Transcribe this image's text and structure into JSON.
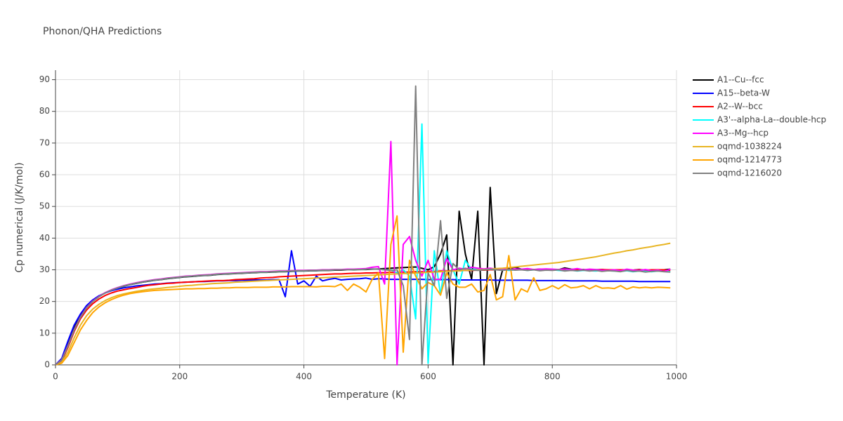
{
  "chart_data": {
    "type": "line",
    "title": "Phonon/QHA Predictions",
    "x_label": "Temperature (K)",
    "y_label": "Cp numerical (J/K/mol)",
    "xlim": [
      0,
      1000
    ],
    "ylim": [
      0,
      93
    ],
    "xticks": [
      0,
      200,
      400,
      600,
      800,
      1000
    ],
    "yticks": [
      0,
      10,
      20,
      30,
      40,
      50,
      60,
      70,
      80,
      90
    ],
    "grid": true,
    "legend": "right",
    "x": [
      0,
      10,
      20,
      30,
      40,
      50,
      60,
      70,
      80,
      90,
      100,
      110,
      120,
      130,
      140,
      150,
      160,
      170,
      180,
      190,
      200,
      210,
      220,
      230,
      240,
      250,
      260,
      270,
      280,
      290,
      300,
      310,
      320,
      330,
      340,
      350,
      360,
      370,
      380,
      390,
      400,
      410,
      420,
      430,
      440,
      450,
      460,
      470,
      480,
      490,
      500,
      510,
      520,
      530,
      540,
      550,
      560,
      570,
      580,
      590,
      600,
      610,
      620,
      630,
      640,
      650,
      660,
      670,
      680,
      690,
      700,
      710,
      720,
      730,
      740,
      750,
      760,
      770,
      780,
      790,
      800,
      810,
      820,
      830,
      840,
      850,
      860,
      870,
      880,
      890,
      900,
      910,
      920,
      930,
      940,
      950,
      960,
      970,
      980,
      990
    ],
    "series": [
      {
        "name": "A1--Cu--fcc",
        "color": "#000000",
        "values": [
          0,
          1.8,
          6.5,
          11.5,
          15.5,
          18.3,
          20.2,
          21.6,
          22.7,
          23.5,
          24.2,
          24.8,
          25.3,
          25.7,
          26.1,
          26.4,
          26.7,
          26.9,
          27.2,
          27.4,
          27.6,
          27.8,
          27.9,
          28.1,
          28.2,
          28.3,
          28.5,
          28.6,
          28.7,
          28.8,
          28.9,
          29,
          29.1,
          29.2,
          29.2,
          29.3,
          29.4,
          29.4,
          29.5,
          29.6,
          29.6,
          29.7,
          29.7,
          29.8,
          29.8,
          29.9,
          29.9,
          30,
          30,
          30.1,
          30.1,
          30.2,
          30.3,
          30.4,
          30.5,
          30.6,
          30.7,
          30.8,
          30.9,
          30.5,
          30,
          31,
          35,
          41,
          0,
          48.5,
          35,
          27,
          48.5,
          0,
          56,
          22.5,
          30,
          30.5,
          30.8,
          30.2,
          30,
          30.1,
          30.2,
          30,
          30.1,
          30,
          30.6,
          30.2,
          30,
          30.1,
          29.9,
          30,
          30.1,
          29.9,
          30,
          29.8,
          30,
          29.9,
          30.1,
          29.8,
          29.7,
          29.9,
          30,
          30.2
        ]
      },
      {
        "name": "A15--beta-W",
        "color": "#0000ff",
        "values": [
          0,
          2,
          7.5,
          12.5,
          16,
          18.7,
          20.5,
          21.8,
          22.7,
          23.4,
          23.9,
          24.3,
          24.6,
          24.9,
          25.1,
          25.3,
          25.5,
          25.6,
          25.8,
          25.9,
          26,
          26.1,
          26.2,
          26.3,
          26.3,
          26.4,
          26.5,
          26.5,
          26.6,
          26.6,
          26.7,
          26.7,
          26.8,
          26.8,
          26.8,
          26.9,
          26.9,
          21.5,
          36,
          25.5,
          26.5,
          24.8,
          28,
          26.5,
          27,
          27.3,
          26.8,
          27,
          27.1,
          27.2,
          27.4,
          27,
          27.2,
          27.1,
          27,
          27,
          27,
          27,
          27,
          27,
          26.9,
          26.9,
          26.9,
          26.9,
          26.9,
          26.8,
          26.8,
          26.8,
          26.8,
          26.8,
          26.8,
          26.7,
          26.7,
          26.7,
          26.7,
          26.7,
          26.7,
          26.6,
          26.6,
          26.6,
          26.6,
          26.6,
          26.6,
          26.5,
          26.5,
          26.5,
          26.5,
          26.5,
          26.4,
          26.4,
          26.4,
          26.4,
          26.4,
          26.4,
          26.3,
          26.3,
          26.3,
          26.3,
          26.3,
          26.3
        ]
      },
      {
        "name": "A2--W--bcc",
        "color": "#ff0000",
        "values": [
          0,
          1.2,
          5.5,
          10.5,
          14.5,
          17.3,
          19.3,
          20.8,
          21.9,
          22.7,
          23.3,
          23.7,
          24.1,
          24.4,
          24.8,
          25.1,
          25.3,
          25.5,
          25.7,
          25.8,
          26,
          26.1,
          26.2,
          26.3,
          26.4,
          26.5,
          26.6,
          26.6,
          26.7,
          26.9,
          27,
          27.1,
          27.2,
          27.4,
          27.5,
          27.6,
          27.8,
          27.9,
          28,
          28.1,
          28.2,
          28.3,
          28.4,
          28.5,
          28.6,
          28.7,
          28.7,
          28.8,
          28.9,
          28.9,
          29,
          29,
          29.1,
          29.1,
          29.2,
          29.2,
          29.3,
          29.3,
          29.4,
          29.4,
          29.5,
          29.5,
          29.6,
          29.6,
          29.7,
          29.7,
          29.8,
          29.8,
          29.9,
          29.9,
          30,
          30,
          30,
          30,
          30.1,
          30.1,
          30.1,
          30.1,
          30.1,
          30,
          30.1,
          30,
          30.1,
          30,
          30.1,
          30,
          30,
          30,
          30.1,
          30,
          30,
          30,
          30,
          29.9,
          30,
          29.9,
          30,
          30,
          30,
          29.8
        ]
      },
      {
        "name": "A3'--alpha-La--double-hcp",
        "color": "#00ffff",
        "values": [
          0,
          1.5,
          6,
          11,
          15,
          18,
          20,
          21.5,
          22.7,
          23.6,
          24.3,
          24.9,
          25.4,
          25.8,
          26.2,
          26.5,
          26.8,
          27,
          27.3,
          27.5,
          27.7,
          27.9,
          28,
          28.2,
          28.3,
          28.4,
          28.6,
          28.7,
          28.8,
          28.9,
          29,
          29.1,
          29.2,
          29.3,
          29.3,
          29.4,
          29.5,
          29.5,
          29.6,
          29.7,
          29.7,
          29.8,
          29.8,
          29.9,
          29.9,
          30,
          30,
          30,
          30.1,
          30.1,
          30.2,
          30.3,
          30.2,
          30,
          30,
          29,
          30,
          28,
          14.5,
          76,
          0.5,
          36,
          22,
          36,
          30,
          25.5,
          33,
          30,
          30.5,
          30,
          30.2,
          30,
          30.3,
          29.8,
          30,
          30.1,
          29.8,
          30,
          30,
          29.9,
          30,
          29.8,
          29.7,
          29.9,
          29.6,
          29.8,
          29.7,
          29.6,
          29.8,
          29.7,
          29.6,
          29.5,
          29.7,
          29.4,
          29.6,
          29.5,
          29.4,
          29.6,
          29.5,
          29.4
        ]
      },
      {
        "name": "A3--Mg--hcp",
        "color": "#ff00ff",
        "values": [
          0,
          1.6,
          6.1,
          11.1,
          15.1,
          18.1,
          20.1,
          21.6,
          22.8,
          23.7,
          24.4,
          25,
          25.5,
          25.9,
          26.3,
          26.6,
          26.9,
          27.1,
          27.4,
          27.6,
          27.8,
          28,
          28.1,
          28.3,
          28.4,
          28.5,
          28.7,
          28.8,
          28.9,
          29,
          29.1,
          29.2,
          29.3,
          29.4,
          29.4,
          29.5,
          29.6,
          29.6,
          29.7,
          29.8,
          29.8,
          29.9,
          29.9,
          30,
          30,
          30.1,
          30.1,
          30.2,
          30.2,
          30.3,
          30.4,
          30.8,
          31,
          25.5,
          70.5,
          0,
          38,
          40.5,
          33,
          28,
          33,
          27,
          27,
          33.5,
          30,
          30.5,
          30.2,
          30.8,
          30.5,
          30.3,
          30.5,
          30.2,
          30.4,
          30.1,
          30.3,
          30.2,
          30.4,
          30.1,
          30.2,
          30.3,
          30.2,
          30.1,
          30.3,
          30.1,
          30.4,
          30,
          30.2,
          30.1,
          29.9,
          29.8,
          30,
          29.7,
          30.2,
          29.9,
          29.8,
          30.1,
          29.7,
          29.9,
          29.5,
          30.2
        ]
      },
      {
        "name": "oqmd-1038224",
        "color": "#e8b523",
        "values": [
          0,
          0.8,
          4,
          8.5,
          12.5,
          15.5,
          17.6,
          19.1,
          20.3,
          21.2,
          21.9,
          22.4,
          22.8,
          23.2,
          23.5,
          23.8,
          24,
          24.2,
          24.4,
          24.6,
          24.8,
          25,
          25.1,
          25.3,
          25.4,
          25.6,
          25.7,
          25.8,
          25.9,
          26.1,
          26.2,
          26.3,
          26.4,
          26.5,
          26.6,
          26.7,
          26.8,
          26.9,
          27,
          27.1,
          27.2,
          27.3,
          27.4,
          27.5,
          27.6,
          27.7,
          27.8,
          27.9,
          28,
          28.1,
          28.2,
          28.3,
          28.4,
          28.5,
          28.6,
          28.7,
          28.8,
          28.9,
          29,
          29.1,
          29.2,
          29.3,
          29.4,
          29.5,
          29.6,
          29.7,
          29.8,
          29.9,
          30,
          30.1,
          30.2,
          30.4,
          30.5,
          30.7,
          30.9,
          31.1,
          31.3,
          31.5,
          31.7,
          31.9,
          32.1,
          32.3,
          32.6,
          32.9,
          33.2,
          33.5,
          33.8,
          34.1,
          34.5,
          34.9,
          35.3,
          35.6,
          36,
          36.3,
          36.7,
          37,
          37.3,
          37.7,
          38,
          38.4
        ]
      },
      {
        "name": "oqmd-1214773",
        "color": "#ffa500",
        "values": [
          0,
          0.5,
          3,
          7,
          11,
          14,
          16.5,
          18.3,
          19.6,
          20.6,
          21.4,
          22,
          22.5,
          22.8,
          23.1,
          23.3,
          23.5,
          23.6,
          23.7,
          23.8,
          23.9,
          24,
          24,
          24.1,
          24.1,
          24.2,
          24.2,
          24.3,
          24.3,
          24.4,
          24.4,
          24.4,
          24.5,
          24.5,
          24.5,
          24.6,
          24.6,
          24.6,
          24.7,
          24.7,
          24.7,
          24.7,
          24.6,
          24.8,
          24.8,
          24.7,
          25.5,
          23.5,
          25.5,
          24.5,
          23,
          27,
          29,
          2,
          38,
          47,
          4,
          33,
          28,
          24,
          26,
          25,
          22,
          29,
          25.5,
          24.5,
          24.5,
          25.5,
          23,
          23.5,
          28.5,
          20.5,
          21.5,
          34.5,
          20.5,
          24,
          23,
          27.5,
          23.5,
          24,
          25,
          24,
          25.3,
          24.3,
          24.5,
          25,
          24,
          25,
          24.2,
          24.3,
          24.1,
          25,
          23.9,
          24.6,
          24.3,
          24.5,
          24.3,
          24.5,
          24.4,
          24.3
        ]
      },
      {
        "name": "oqmd-1216020",
        "color": "#808080",
        "values": [
          0,
          1.5,
          6,
          11,
          15,
          18,
          20,
          21.5,
          22.7,
          23.6,
          24.3,
          24.9,
          25.4,
          25.8,
          26.2,
          26.5,
          26.8,
          27,
          27.3,
          27.5,
          27.7,
          27.9,
          28,
          28.2,
          28.3,
          28.4,
          28.6,
          28.7,
          28.8,
          28.9,
          29,
          29.1,
          29.2,
          29.3,
          29.3,
          29.4,
          29.5,
          29.5,
          29.6,
          29.7,
          29.7,
          29.8,
          29.8,
          29.9,
          29.9,
          30,
          30,
          30,
          30.1,
          30.1,
          30.2,
          30.3,
          30.2,
          30,
          29.8,
          30,
          25,
          8,
          88,
          0,
          29,
          25,
          45.5,
          21,
          32,
          30,
          30.5,
          30,
          29.8,
          30,
          30.2,
          30,
          29.8,
          30.1,
          29.9,
          30,
          29.8,
          30,
          29.7,
          29.9,
          29.8,
          30,
          29.6,
          29.8,
          29.7,
          29.9,
          29.6,
          29.8,
          29.5,
          29.7,
          29.6,
          29.4,
          29.8,
          29.5,
          29.6,
          29.3,
          29.5,
          29.6,
          29.4,
          29.3
        ]
      }
    ]
  }
}
